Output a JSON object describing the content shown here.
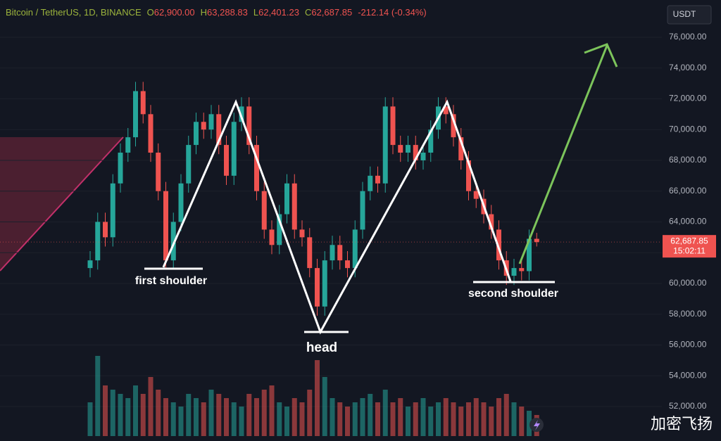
{
  "chart_data": {
    "type": "candlestick",
    "header": {
      "symbol": "Bitcoin / TetherUS, 1D, BINANCE",
      "ohlc": [
        {
          "label": "O",
          "value": "62,900.00"
        },
        {
          "label": "H",
          "value": "63,288.83"
        },
        {
          "label": "L",
          "value": "62,401.23"
        },
        {
          "label": "C",
          "value": "62,687.85"
        }
      ],
      "change": "-212.14 (-0.34%)"
    },
    "currency": "USDT",
    "open": [
      61000,
      61500,
      64000,
      63000,
      66500,
      68500,
      69500,
      72500,
      71000,
      68500,
      66000,
      61500,
      64000,
      66500,
      69000,
      70500,
      70000,
      71000,
      69000,
      67000,
      70500,
      71500,
      69000,
      66000,
      63500,
      62500,
      64500,
      66500,
      63500,
      63000,
      61000,
      58500,
      61500,
      62500,
      61500,
      61000,
      63500,
      66000,
      67000,
      66500,
      71500,
      69000,
      68500,
      69000,
      68000,
      68500,
      70000,
      71500,
      71000,
      69500,
      68000,
      66000,
      65500,
      64500,
      63500,
      61500,
      60500,
      61000,
      60800,
      62900
    ],
    "high": [
      62100,
      64600,
      64600,
      67100,
      69100,
      70100,
      73100,
      73100,
      71600,
      69100,
      66600,
      64600,
      67100,
      69600,
      71100,
      71100,
      71600,
      71600,
      69600,
      71100,
      72100,
      72100,
      69600,
      66600,
      64100,
      65100,
      67100,
      67100,
      64100,
      63600,
      61600,
      62100,
      63100,
      63100,
      62100,
      64100,
      66600,
      67600,
      67600,
      72100,
      72100,
      69600,
      69600,
      69600,
      69100,
      70600,
      72100,
      72100,
      71600,
      70100,
      68600,
      66600,
      66100,
      65100,
      64100,
      62100,
      61600,
      61600,
      63500,
      63288.83
    ],
    "low": [
      60400,
      60900,
      62400,
      62400,
      65900,
      67900,
      68900,
      70400,
      67900,
      65400,
      60900,
      60900,
      63400,
      65900,
      68400,
      69400,
      69400,
      68400,
      66400,
      66400,
      69900,
      68400,
      65400,
      62900,
      61900,
      61900,
      63900,
      62900,
      62400,
      60400,
      57900,
      57900,
      60900,
      60900,
      60400,
      60400,
      62900,
      65400,
      65900,
      65900,
      68400,
      67900,
      67900,
      67400,
      67400,
      67900,
      69400,
      70400,
      68900,
      67400,
      65400,
      64900,
      63900,
      62900,
      60900,
      59900,
      59900,
      60200,
      60200,
      62401.23
    ],
    "close": [
      61500,
      64000,
      63000,
      66500,
      68500,
      69500,
      72500,
      71000,
      68500,
      66000,
      61500,
      64000,
      66500,
      69000,
      70500,
      70000,
      71000,
      69000,
      67000,
      70500,
      71500,
      69000,
      66000,
      63500,
      62500,
      64500,
      66500,
      63500,
      63000,
      61000,
      58500,
      61500,
      62500,
      61500,
      61000,
      63500,
      66000,
      67000,
      66500,
      71500,
      69000,
      68500,
      69000,
      68000,
      68500,
      70000,
      71500,
      71000,
      69500,
      68000,
      66000,
      65500,
      64500,
      63500,
      61500,
      60500,
      61000,
      60800,
      62900,
      62687.85
    ],
    "volume": [
      40,
      95,
      60,
      55,
      50,
      45,
      60,
      50,
      70,
      55,
      45,
      40,
      35,
      50,
      45,
      40,
      55,
      50,
      45,
      40,
      35,
      50,
      45,
      55,
      60,
      40,
      35,
      45,
      40,
      55,
      90,
      70,
      45,
      40,
      35,
      40,
      45,
      50,
      40,
      55,
      40,
      45,
      35,
      40,
      45,
      35,
      40,
      45,
      40,
      35,
      40,
      45,
      40,
      35,
      45,
      50,
      40,
      35,
      30,
      25
    ],
    "up_color": "#26a69a",
    "down_color": "#ef5350",
    "ylim": [
      50080,
      78420
    ],
    "yticks": [
      {
        "value": 52000,
        "label": "52,000.00"
      },
      {
        "value": 54000,
        "label": "54,000.00"
      },
      {
        "value": 56000,
        "label": "56,000.00"
      },
      {
        "value": 58000,
        "label": "58,000.00"
      },
      {
        "value": 60000,
        "label": "60,000.00"
      },
      {
        "value": 62000,
        "label": "62,000.00"
      },
      {
        "value": 64000,
        "label": "64,000.00"
      },
      {
        "value": 66000,
        "label": "66,000.00"
      },
      {
        "value": 68000,
        "label": "68,000.00"
      },
      {
        "value": 70000,
        "label": "70,000.00"
      },
      {
        "value": 72000,
        "label": "72,000.00"
      },
      {
        "value": 74000,
        "label": "74,000.00"
      },
      {
        "value": 76000,
        "label": "76,000.00"
      }
    ],
    "last_price": {
      "value": 62687.85,
      "label": "62,687.85",
      "countdown": "15:02:11"
    },
    "annotations": [
      "first shoulder",
      "head",
      "second shoulder"
    ],
    "watermark": "加密飞扬"
  }
}
